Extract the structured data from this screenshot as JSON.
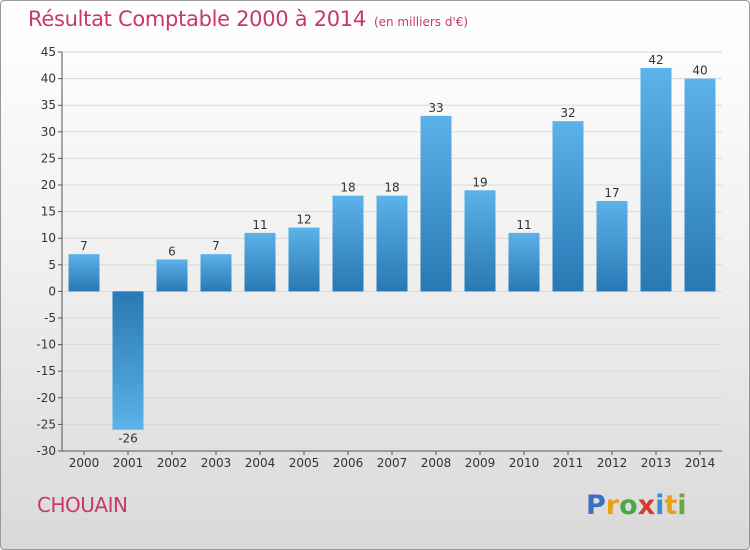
{
  "header": {
    "title": "Résultat Comptable 2000 à 2014",
    "subtitle": "(en milliers d'€)"
  },
  "commune": "CHOUAIN",
  "brand": {
    "letters": [
      "P",
      "r",
      "o",
      "x",
      "i",
      "t",
      "i"
    ],
    "colors": [
      "#3a6fc4",
      "#e8a21a",
      "#4aa84a",
      "#d63b2f",
      "#3a8fd1",
      "#e8a21a",
      "#6aaa3a"
    ]
  },
  "colors": {
    "bar_top": "#5cb2ea",
    "bar_bottom": "#2878b4",
    "grid": "#d9d9d9",
    "axis": "#555555"
  },
  "chart_data": {
    "type": "bar",
    "title": "Résultat Comptable 2000 à 2014",
    "subtitle": "(en milliers d'€)",
    "categories": [
      "2000",
      "2001",
      "2002",
      "2003",
      "2004",
      "2005",
      "2006",
      "2007",
      "2008",
      "2009",
      "2010",
      "2011",
      "2012",
      "2013",
      "2014"
    ],
    "values": [
      7,
      -26,
      6,
      7,
      11,
      12,
      18,
      18,
      33,
      19,
      11,
      32,
      17,
      42,
      40
    ],
    "ylim": [
      -30,
      45
    ],
    "yticks": [
      45,
      40,
      35,
      30,
      25,
      20,
      15,
      10,
      5,
      0,
      -5,
      -10,
      -15,
      -20,
      -25,
      -30
    ],
    "grid": true,
    "legend": "none"
  }
}
